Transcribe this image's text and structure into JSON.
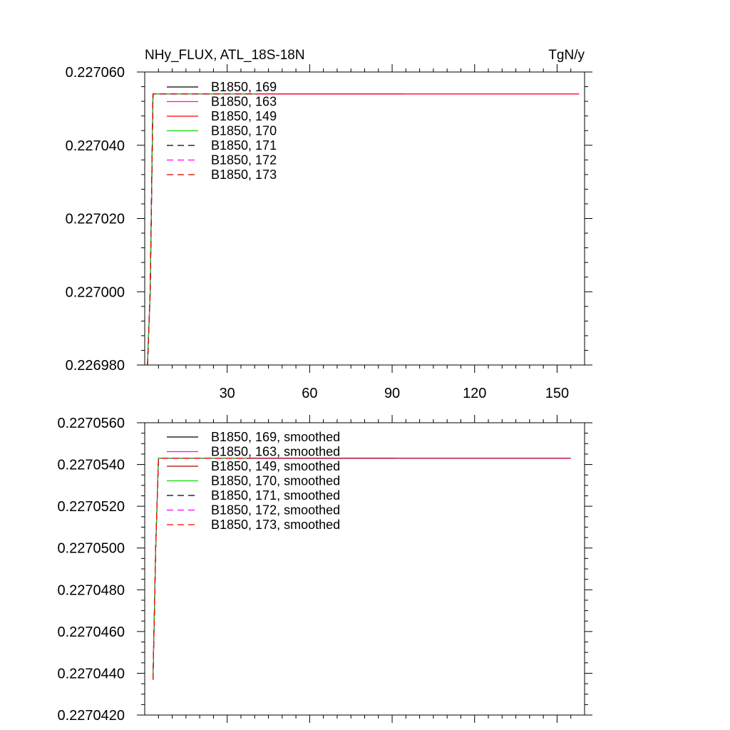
{
  "chart_data": [
    {
      "type": "line",
      "title_left": "NHy_FLUX, ATL_18S-18N",
      "title_right": "TgN/y",
      "xlim": [
        0,
        160
      ],
      "ylim": [
        0.22698,
        0.22706
      ],
      "xticks": [
        30,
        60,
        90,
        120,
        150
      ],
      "xtick_labels": [
        "30",
        "60",
        "90",
        "120",
        "150"
      ],
      "yticks": [
        0.22698,
        0.227,
        0.22702,
        0.22704,
        0.22706
      ],
      "ytick_labels": [
        "0.226980",
        "0.227000",
        "0.227020",
        "0.227040",
        "0.227060"
      ],
      "legend_position": "top-left",
      "series": [
        {
          "name": "B1850, 169",
          "color": "#000000",
          "dash": "solid",
          "x": [
            1,
            2,
            3,
            94
          ],
          "y": [
            0.22698,
            0.227,
            0.227054,
            0.227054
          ]
        },
        {
          "name": "B1850, 163",
          "color": "#ff00ff",
          "dash": "solid",
          "x": [
            1,
            2,
            3,
            158
          ],
          "y": [
            0.22698,
            0.227,
            0.227054,
            0.227054
          ]
        },
        {
          "name": "B1850, 149",
          "color": "#ff0000",
          "dash": "solid",
          "x": [
            1,
            2,
            3,
            158
          ],
          "y": [
            0.22698,
            0.227,
            0.227054,
            0.227054
          ]
        },
        {
          "name": "B1850, 170",
          "color": "#00dd00",
          "dash": "solid",
          "x": [
            1,
            2,
            3,
            40
          ],
          "y": [
            0.22698,
            0.227,
            0.227054,
            0.227054
          ]
        },
        {
          "name": "B1850, 171",
          "color": "#000000",
          "dash": "dashed",
          "x": [
            1,
            2,
            3,
            40
          ],
          "y": [
            0.22698,
            0.227,
            0.227054,
            0.227054
          ]
        },
        {
          "name": "B1850, 172",
          "color": "#ff00ff",
          "dash": "dashed",
          "x": [
            1,
            2,
            3,
            40
          ],
          "y": [
            0.22698,
            0.227,
            0.227054,
            0.227054
          ]
        },
        {
          "name": "B1850, 173",
          "color": "#cc0000",
          "dash": "dashed",
          "x": [
            1,
            2,
            3,
            40
          ],
          "y": [
            0.22698,
            0.227,
            0.227054,
            0.227054
          ]
        }
      ]
    },
    {
      "type": "line",
      "xlim": [
        0,
        160
      ],
      "ylim": [
        0.227042,
        0.227056
      ],
      "xticks": [
        30,
        60,
        90,
        120,
        150
      ],
      "xtick_labels": [
        "",
        "",
        "",
        "",
        ""
      ],
      "yticks": [
        0.227042,
        0.227044,
        0.227046,
        0.227048,
        0.22705,
        0.227052,
        0.227054,
        0.227056
      ],
      "ytick_labels": [
        "0.2270420",
        "0.2270440",
        "0.2270460",
        "0.2270480",
        "0.2270500",
        "0.2270520",
        "0.2270540",
        "0.2270560"
      ],
      "legend_position": "top-left",
      "series": [
        {
          "name": "B1850, 169, smoothed",
          "color": "#000000",
          "dash": "solid",
          "x": [
            3,
            4,
            5,
            91
          ],
          "y": [
            0.2270437,
            0.22705,
            0.2270543,
            0.2270543
          ]
        },
        {
          "name": "B1850, 163, smoothed",
          "color": "#ff00ff",
          "dash": "solid",
          "x": [
            3,
            4,
            5,
            155
          ],
          "y": [
            0.2270437,
            0.22705,
            0.2270543,
            0.2270543
          ]
        },
        {
          "name": "B1850, 149, smoothed",
          "color": "#aa0000",
          "dash": "solid",
          "x": [
            3,
            4,
            5,
            155
          ],
          "y": [
            0.2270437,
            0.22705,
            0.2270543,
            0.2270543
          ]
        },
        {
          "name": "B1850, 170, smoothed",
          "color": "#00dd00",
          "dash": "solid",
          "x": [
            3,
            4,
            5,
            37
          ],
          "y": [
            0.2270437,
            0.22705,
            0.2270543,
            0.2270543
          ]
        },
        {
          "name": "B1850, 171, smoothed",
          "color": "#000000",
          "dash": "dashed",
          "x": [
            3,
            4,
            5,
            37
          ],
          "y": [
            0.2270437,
            0.22705,
            0.2270543,
            0.2270543
          ]
        },
        {
          "name": "B1850, 172, smoothed",
          "color": "#ff00ff",
          "dash": "dashed",
          "x": [
            3,
            4,
            5,
            37
          ],
          "y": [
            0.2270437,
            0.22705,
            0.2270543,
            0.2270543
          ]
        },
        {
          "name": "B1850, 173, smoothed",
          "color": "#ff0000",
          "dash": "dashed",
          "x": [
            3,
            4,
            5,
            37
          ],
          "y": [
            0.2270437,
            0.22705,
            0.2270543,
            0.2270543
          ]
        }
      ]
    }
  ]
}
